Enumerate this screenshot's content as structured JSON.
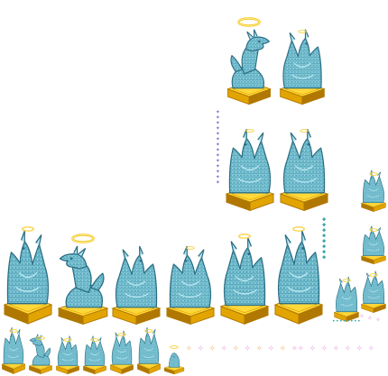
{
  "sheet": {
    "background": "#ffffff",
    "sprite_kind": "dragon-statue",
    "colors": {
      "body": "#7ec8d8",
      "body_light": "#b8e6ef",
      "body_dark": "#3f8fa6",
      "outline": "#2b6e84",
      "pedestal_top": "#ffd83a",
      "pedestal_side": "#e2a400",
      "pedestal_dark": "#b07800",
      "halo": "#f5c518",
      "sparkle_purple": "#8a6fd0",
      "sparkle_teal": "#3aa6a6",
      "sparkle_pink": "#e89ad8",
      "sparkle_orange": "#f0b060"
    }
  },
  "sprites": [
    {
      "id": "top-head-right",
      "pose": "head",
      "halo": "large",
      "pedestal": "large",
      "facing": "right"
    },
    {
      "id": "top-wing-right",
      "pose": "wing",
      "halo": "small",
      "pedestal": "large",
      "facing": "right"
    },
    {
      "id": "mid-wing-a",
      "pose": "wing",
      "halo": "small",
      "pedestal": "large",
      "facing": "left"
    },
    {
      "id": "mid-wing-b",
      "pose": "wing",
      "halo": "small",
      "pedestal": "large",
      "facing": "right"
    },
    {
      "id": "row-1",
      "pose": "wing",
      "halo": "medium",
      "pedestal": "large",
      "facing": "left"
    },
    {
      "id": "row-2",
      "pose": "head",
      "halo": "large",
      "pedestal": "large",
      "facing": "left"
    },
    {
      "id": "row-3",
      "pose": "wing",
      "halo": "none",
      "pedestal": "large",
      "facing": "right"
    },
    {
      "id": "row-4",
      "pose": "wing",
      "halo": "small",
      "pedestal": "large",
      "facing": "left"
    },
    {
      "id": "row-5",
      "pose": "wing",
      "halo": "medium",
      "pedestal": "large",
      "facing": "right"
    },
    {
      "id": "row-6",
      "pose": "wing",
      "halo": "medium",
      "pedestal": "large",
      "facing": "right"
    },
    {
      "id": "icon-1",
      "pose": "wing",
      "halo": "small",
      "pedestal": "small",
      "facing": "left"
    },
    {
      "id": "icon-2",
      "pose": "head",
      "halo": "small",
      "pedestal": "small",
      "facing": "left"
    },
    {
      "id": "icon-3",
      "pose": "wing",
      "halo": "small",
      "pedestal": "small",
      "facing": "right"
    },
    {
      "id": "icon-4",
      "pose": "wing",
      "halo": "small",
      "pedestal": "small",
      "facing": "left"
    },
    {
      "id": "icon-5",
      "pose": "wing",
      "halo": "small",
      "pedestal": "small",
      "facing": "right"
    },
    {
      "id": "icon-6",
      "pose": "wing",
      "halo": "small",
      "pedestal": "small",
      "facing": "left"
    },
    {
      "id": "icon-7",
      "pose": "tiny",
      "halo": "small",
      "pedestal": "small",
      "facing": "left"
    },
    {
      "id": "side-1",
      "pose": "wing",
      "halo": "small",
      "pedestal": "small",
      "facing": "left"
    },
    {
      "id": "side-2",
      "pose": "wing",
      "halo": "small",
      "pedestal": "small",
      "facing": "left"
    },
    {
      "id": "side-3",
      "pose": "wing",
      "halo": "small",
      "pedestal": "small",
      "facing": "right"
    },
    {
      "id": "side-4",
      "pose": "wing",
      "halo": "small",
      "pedestal": "small",
      "facing": "right"
    }
  ],
  "effects": [
    {
      "id": "sparkle-trail-purple-vertical",
      "glyph": "✦",
      "color": "sparkle_purple"
    },
    {
      "id": "sparkle-trail-teal-vertical",
      "glyph": "◆",
      "color": "sparkle_teal"
    },
    {
      "id": "sparkle-dots-teal",
      "glyph": "•",
      "color": "sparkle_teal"
    },
    {
      "id": "sparkle-pink-cluster",
      "glyph": "✧",
      "color": "sparkle_pink"
    },
    {
      "id": "sparkle-row-orange-pink",
      "glyph": "✧",
      "color": "sparkle_orange"
    },
    {
      "id": "sparkle-row-pink",
      "glyph": "✧",
      "color": "sparkle_pink"
    }
  ]
}
